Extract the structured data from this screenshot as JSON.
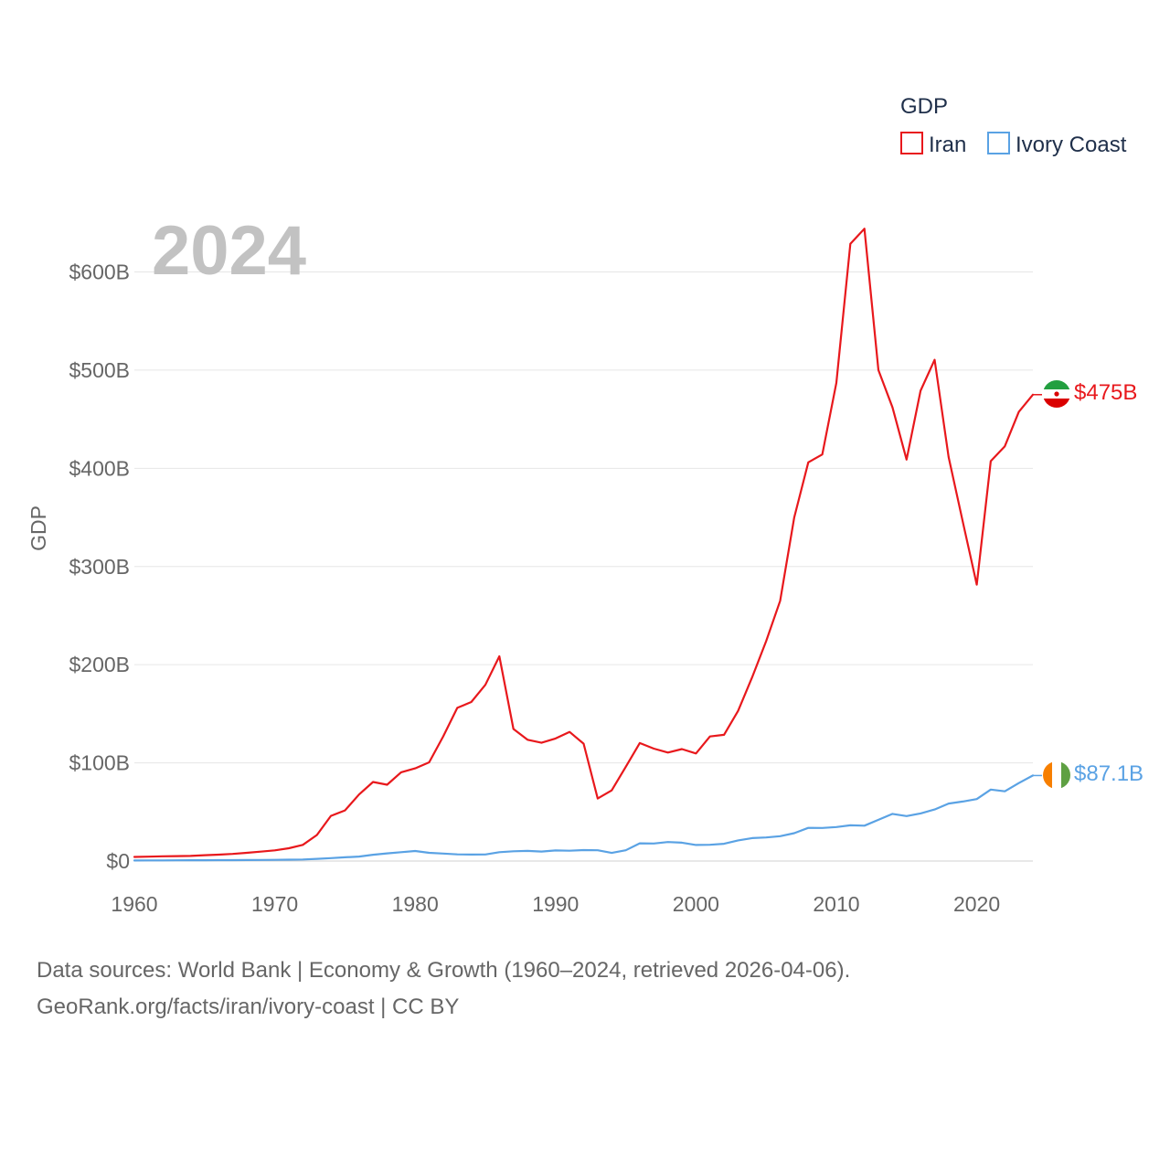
{
  "chart_data": {
    "type": "line",
    "title": "GDP",
    "ylabel": "GDP",
    "xlabel": "",
    "year_label": "2024",
    "ylim": [
      0,
      650
    ],
    "xlim": [
      1960,
      2024
    ],
    "x_ticks": [
      1960,
      1970,
      1980,
      1990,
      2000,
      2010,
      2020
    ],
    "x_tick_labels": [
      "1960",
      "1970",
      "1980",
      "1990",
      "2000",
      "2010",
      "2020"
    ],
    "y_ticks": [
      0,
      100,
      200,
      300,
      400,
      500,
      600
    ],
    "y_tick_labels": [
      "$0",
      "$100B",
      "$200B",
      "$300B",
      "$400B",
      "$500B",
      "$600B"
    ],
    "legend": {
      "title": "GDP",
      "position": "top-right"
    },
    "x": [
      1960,
      1961,
      1962,
      1963,
      1964,
      1965,
      1966,
      1967,
      1968,
      1969,
      1970,
      1971,
      1972,
      1973,
      1974,
      1975,
      1976,
      1977,
      1978,
      1979,
      1980,
      1981,
      1982,
      1983,
      1984,
      1985,
      1986,
      1987,
      1988,
      1989,
      1990,
      1991,
      1992,
      1993,
      1994,
      1995,
      1996,
      1997,
      1998,
      1999,
      2000,
      2001,
      2002,
      2003,
      2004,
      2005,
      2006,
      2007,
      2008,
      2009,
      2010,
      2011,
      2012,
      2013,
      2014,
      2015,
      2016,
      2017,
      2018,
      2019,
      2020,
      2021,
      2022,
      2023,
      2024
    ],
    "series": [
      {
        "name": "Iran",
        "color": "#e8181c",
        "flag": "iran-flag-icon",
        "end_label": "$475B",
        "values": [
          4.2,
          4.5,
          4.8,
          5.0,
          5.2,
          6.0,
          6.5,
          7.3,
          8.4,
          9.6,
          10.9,
          13.0,
          16.5,
          26.5,
          46.0,
          51.6,
          67.8,
          80.5,
          77.7,
          90.4,
          94.4,
          100.5,
          127.0,
          156.0,
          162.0,
          179.5,
          208.5,
          134.5,
          123.5,
          120.5,
          124.8,
          131.5,
          119.5,
          63.7,
          72.0,
          96.0,
          120.2,
          114.5,
          110.5,
          114.0,
          109.6,
          126.9,
          128.6,
          153.0,
          187.0,
          224.0,
          265.0,
          349.9,
          406.1,
          414.1,
          487.1,
          628.6,
          644.0,
          500.0,
          462.0,
          408.9,
          479.0,
          510.5,
          411.5,
          346.0,
          281.5,
          407.3,
          422.5,
          457.5,
          475.0
        ]
      },
      {
        "name": "Ivory Coast",
        "color": "#5aa2e4",
        "flag": "ivory-coast-flag-icon",
        "end_label": "$87.1B",
        "values": [
          0.55,
          0.62,
          0.65,
          0.75,
          0.8,
          0.85,
          0.9,
          0.95,
          1.05,
          1.15,
          1.25,
          1.35,
          1.6,
          2.2,
          3.0,
          3.8,
          4.6,
          6.4,
          7.8,
          9.0,
          10.2,
          8.4,
          7.6,
          6.8,
          6.6,
          6.7,
          9.0,
          10.0,
          10.3,
          9.7,
          10.8,
          10.5,
          11.2,
          11.0,
          8.3,
          11.0,
          18.1,
          17.9,
          19.4,
          18.7,
          16.4,
          16.6,
          17.6,
          21.0,
          23.4,
          24.0,
          25.3,
          28.4,
          33.8,
          33.7,
          34.6,
          36.4,
          36.0,
          42.0,
          48.0,
          45.8,
          48.5,
          52.5,
          58.6,
          60.6,
          63.1,
          72.8,
          71.0,
          79.4,
          87.1
        ]
      }
    ]
  },
  "footer": {
    "line1": "Data sources: World Bank | Economy & Growth (1960–2024, retrieved 2026-04-06).",
    "line2": "GeoRank.org/facts/iran/ivory-coast | CC BY"
  }
}
